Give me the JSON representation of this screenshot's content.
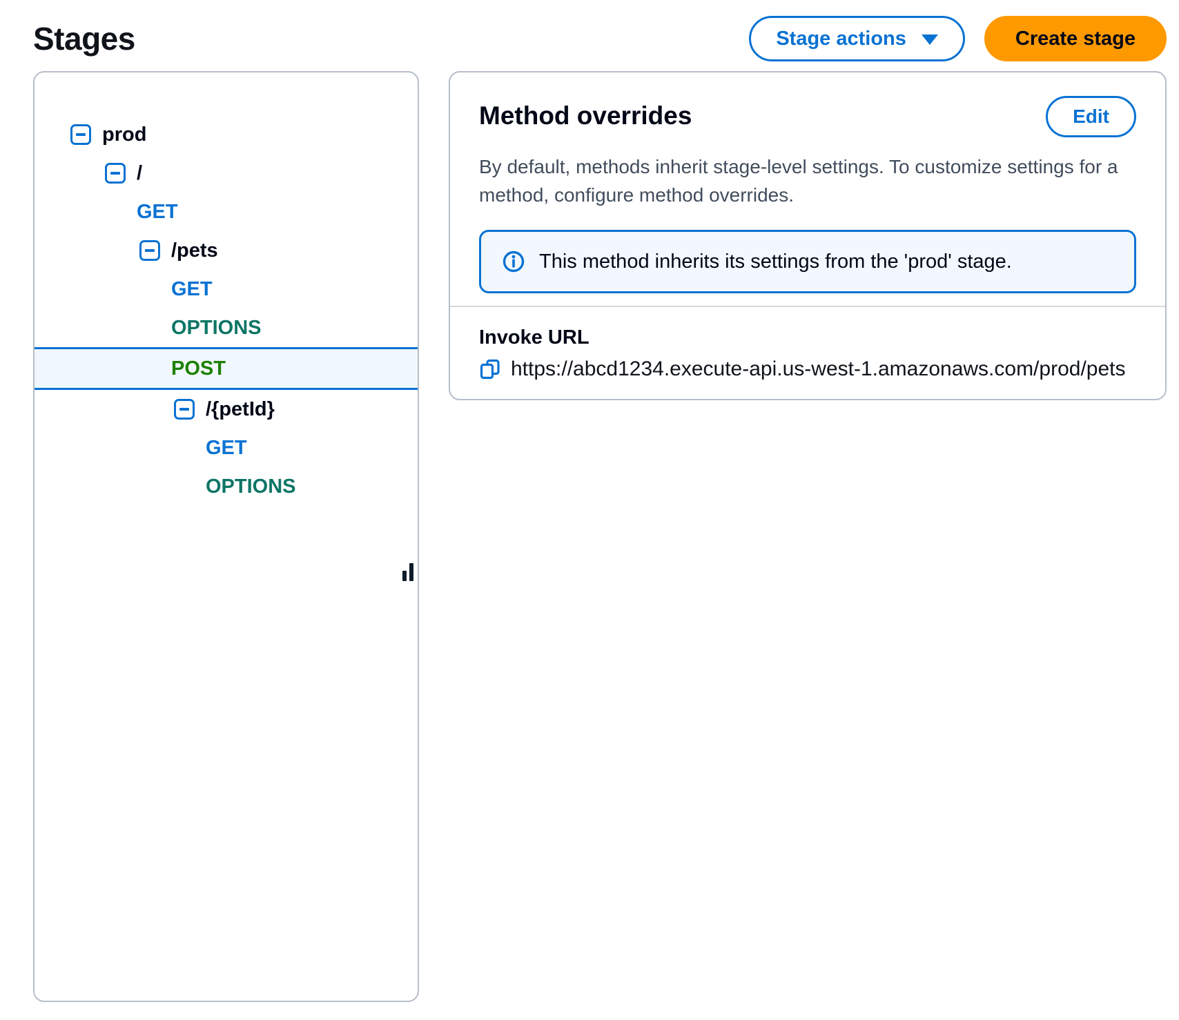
{
  "page": {
    "title": "Stages"
  },
  "header": {
    "stage_actions_label": "Stage actions",
    "create_stage_label": "Create stage"
  },
  "colors": {
    "accent_blue": "#0972d3",
    "primary_button_orange": "#ff9900",
    "text_dark": "#000716",
    "text_secondary": "#414d5c",
    "panel_border": "#b6bec9",
    "selected_row_bg": "#f0f7fd",
    "alert_bg": "#f2f8fd",
    "method_get": "#0972d3",
    "method_options": "#0d7565",
    "method_post": "#1d8102"
  },
  "tree": {
    "items": [
      {
        "type": "resource",
        "label": "prod",
        "level": 0,
        "expanded": true
      },
      {
        "type": "resource",
        "label": "/",
        "level": 1,
        "expanded": true
      },
      {
        "type": "method",
        "label": "GET",
        "level": 1,
        "method": "get"
      },
      {
        "type": "resource",
        "label": "/pets",
        "level": 2,
        "expanded": true
      },
      {
        "type": "method",
        "label": "GET",
        "level": 2,
        "method": "get"
      },
      {
        "type": "method",
        "label": "OPTIONS",
        "level": 2,
        "method": "options"
      },
      {
        "type": "method",
        "label": "POST",
        "level": 2,
        "method": "post",
        "selected": true
      },
      {
        "type": "resource",
        "label": "/{petId}",
        "level": 3,
        "expanded": true
      },
      {
        "type": "method",
        "label": "GET",
        "level": 3,
        "method": "get"
      },
      {
        "type": "method",
        "label": "OPTIONS",
        "level": 3,
        "method": "options"
      }
    ]
  },
  "method_overrides": {
    "title": "Method overrides",
    "edit_label": "Edit",
    "description": "By default, methods inherit stage-level settings. To customize settings for a method, configure method overrides.",
    "alert_text": "This method inherits its settings from the 'prod' stage.",
    "invoke_url_label": "Invoke URL",
    "invoke_url": "https://abcd1234.execute-api.us-west-1.amazonaws.com/prod/pets"
  }
}
